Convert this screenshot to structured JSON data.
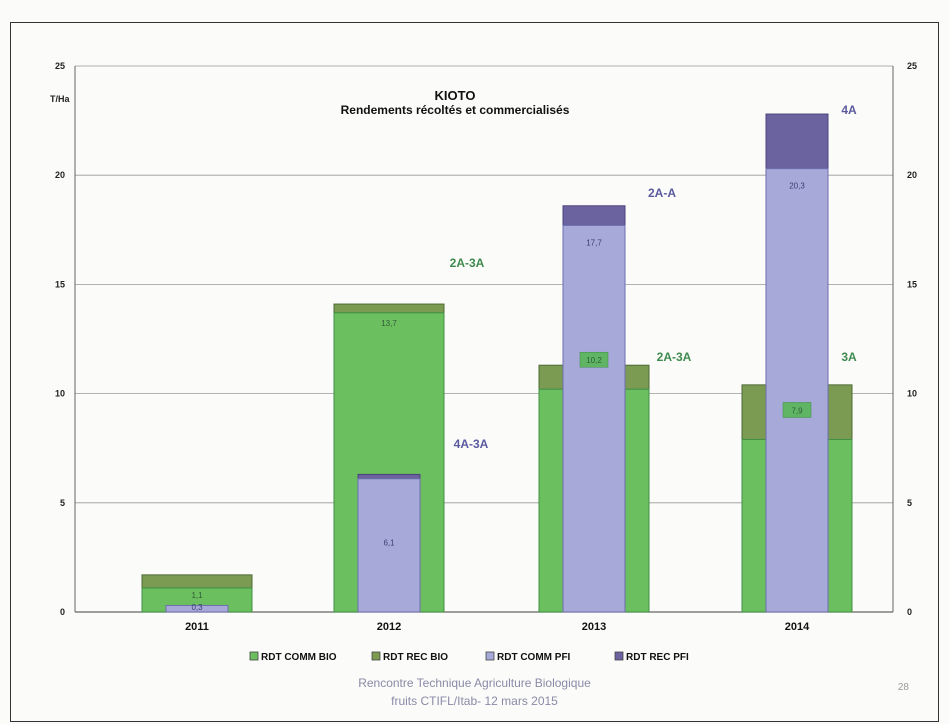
{
  "chart_data": {
    "type": "bar",
    "title": "KIOTO",
    "subtitle": "Rendements récoltés et commercialisés",
    "ylabel": "T/Ha",
    "ylim": [
      0,
      25
    ],
    "yticks": [
      0,
      5,
      10,
      15,
      20,
      25
    ],
    "categories": [
      "2011",
      "2012",
      "2013",
      "2014"
    ],
    "grid": true,
    "legend_position": "bottom",
    "series": [
      {
        "name": "RDT COMM BIO",
        "values": [
          1.1,
          13.7,
          10.2,
          7.9
        ],
        "color": "#6cbf5e"
      },
      {
        "name": "RDT REC BIO",
        "values": [
          1.7,
          14.1,
          11.3,
          10.4
        ],
        "color": "#7b9a52"
      },
      {
        "name": "RDT COMM PFI",
        "values": [
          0.3,
          6.1,
          17.7,
          20.3
        ],
        "color": "#a7a9d8"
      },
      {
        "name": "RDT REC PFI",
        "values": [
          null,
          6.3,
          18.6,
          22.8
        ],
        "color": "#6b62a0"
      }
    ],
    "data_labels": {
      "RDT COMM BIO": [
        "1,1",
        "13,7",
        "10,2",
        "7,9"
      ],
      "RDT COMM PFI": [
        "0,3",
        "6,1",
        "17,7",
        "20,3"
      ]
    },
    "annotations": [
      {
        "text": "2A-3A",
        "category": "2012",
        "y": 15.8,
        "color": "#3f8a4e"
      },
      {
        "text": "4A-3A",
        "category": "2012",
        "y": 7.5,
        "color": "#5b5a9e"
      },
      {
        "text": "2A-A",
        "category": "2013",
        "y": 19.0,
        "color": "#5b5a9e"
      },
      {
        "text": "2A-3A",
        "category": "2013",
        "y": 11.5,
        "color": "#3f8a4e"
      },
      {
        "text": "4A",
        "category": "2014",
        "y": 22.8,
        "color": "#5b5a9e"
      },
      {
        "text": "3A",
        "category": "2014",
        "y": 11.5,
        "color": "#3f8a4e"
      }
    ]
  },
  "footer": {
    "line1": "Rencontre Technique Agriculture Biologique",
    "line2": "fruits CTIFL/Itab- 12 mars 2015",
    "page_number": "28"
  }
}
